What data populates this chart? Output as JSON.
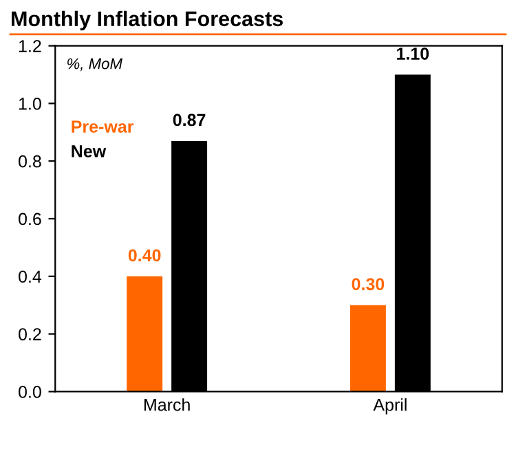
{
  "chart_data": {
    "type": "bar",
    "title": "Monthly Inflation Forecasts",
    "ylabel": "%, MoM",
    "categories": [
      "March",
      "April"
    ],
    "series": [
      {
        "name": "Pre-war",
        "color": "#ff6600",
        "values": [
          0.4,
          0.3
        ],
        "value_labels": [
          "0.40",
          "0.30"
        ]
      },
      {
        "name": "New",
        "color": "#000000",
        "values": [
          0.87,
          1.1
        ],
        "value_labels": [
          "0.87",
          "1.10"
        ]
      }
    ],
    "ylim": [
      0,
      1.2
    ],
    "yticks": [
      {
        "value": 0,
        "label": "0.0"
      },
      {
        "value": 0.2,
        "label": "0.2"
      },
      {
        "value": 0.4,
        "label": "0.4"
      },
      {
        "value": 0.6,
        "label": "0.6"
      },
      {
        "value": 0.8,
        "label": "0.8"
      },
      {
        "value": 1.0,
        "label": "1.0"
      },
      {
        "value": 1.2,
        "label": "1.2"
      }
    ],
    "grid": false,
    "legend": "top left"
  }
}
